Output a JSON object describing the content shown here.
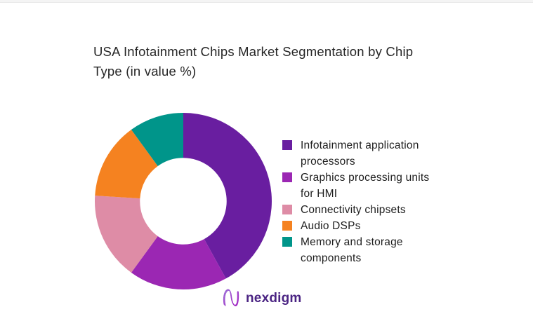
{
  "header": {
    "title_lines": [
      "USA Infotainment Chips Market Segmentation by Chip",
      "Type (in value %)"
    ]
  },
  "chart_data": {
    "type": "pie",
    "variant": "donut",
    "title": "USA Infotainment Chips Market Segmentation by Chip Type (in value %)",
    "categories": [
      "Infotainment application processors",
      "Graphics processing units for HMI",
      "Connectivity chipsets",
      "Audio DSPs",
      "Memory and storage components"
    ],
    "values": [
      42,
      18,
      16,
      14,
      10
    ],
    "unit": "percent of value",
    "colors": [
      "#691EA0",
      "#9B27B3",
      "#DE8CA6",
      "#F58220",
      "#00958A"
    ],
    "start_angle_deg": 0,
    "direction": "clockwise",
    "inner_radius_ratio": 0.49,
    "legend_position": "right",
    "data_labels_shown": false
  },
  "legend": {
    "items": [
      {
        "lines": [
          "Infotainment application",
          "processors"
        ],
        "color": "#691EA0"
      },
      {
        "lines": [
          "Graphics processing units",
          "for HMI"
        ],
        "color": "#9B27B3"
      },
      {
        "lines": [
          "Connectivity chipsets"
        ],
        "color": "#DE8CA6"
      },
      {
        "lines": [
          "Audio DSPs"
        ],
        "color": "#F58220"
      },
      {
        "lines": [
          "Memory and storage",
          "components"
        ],
        "color": "#00958A"
      }
    ]
  },
  "footer": {
    "brand_name": "nexdigm"
  }
}
